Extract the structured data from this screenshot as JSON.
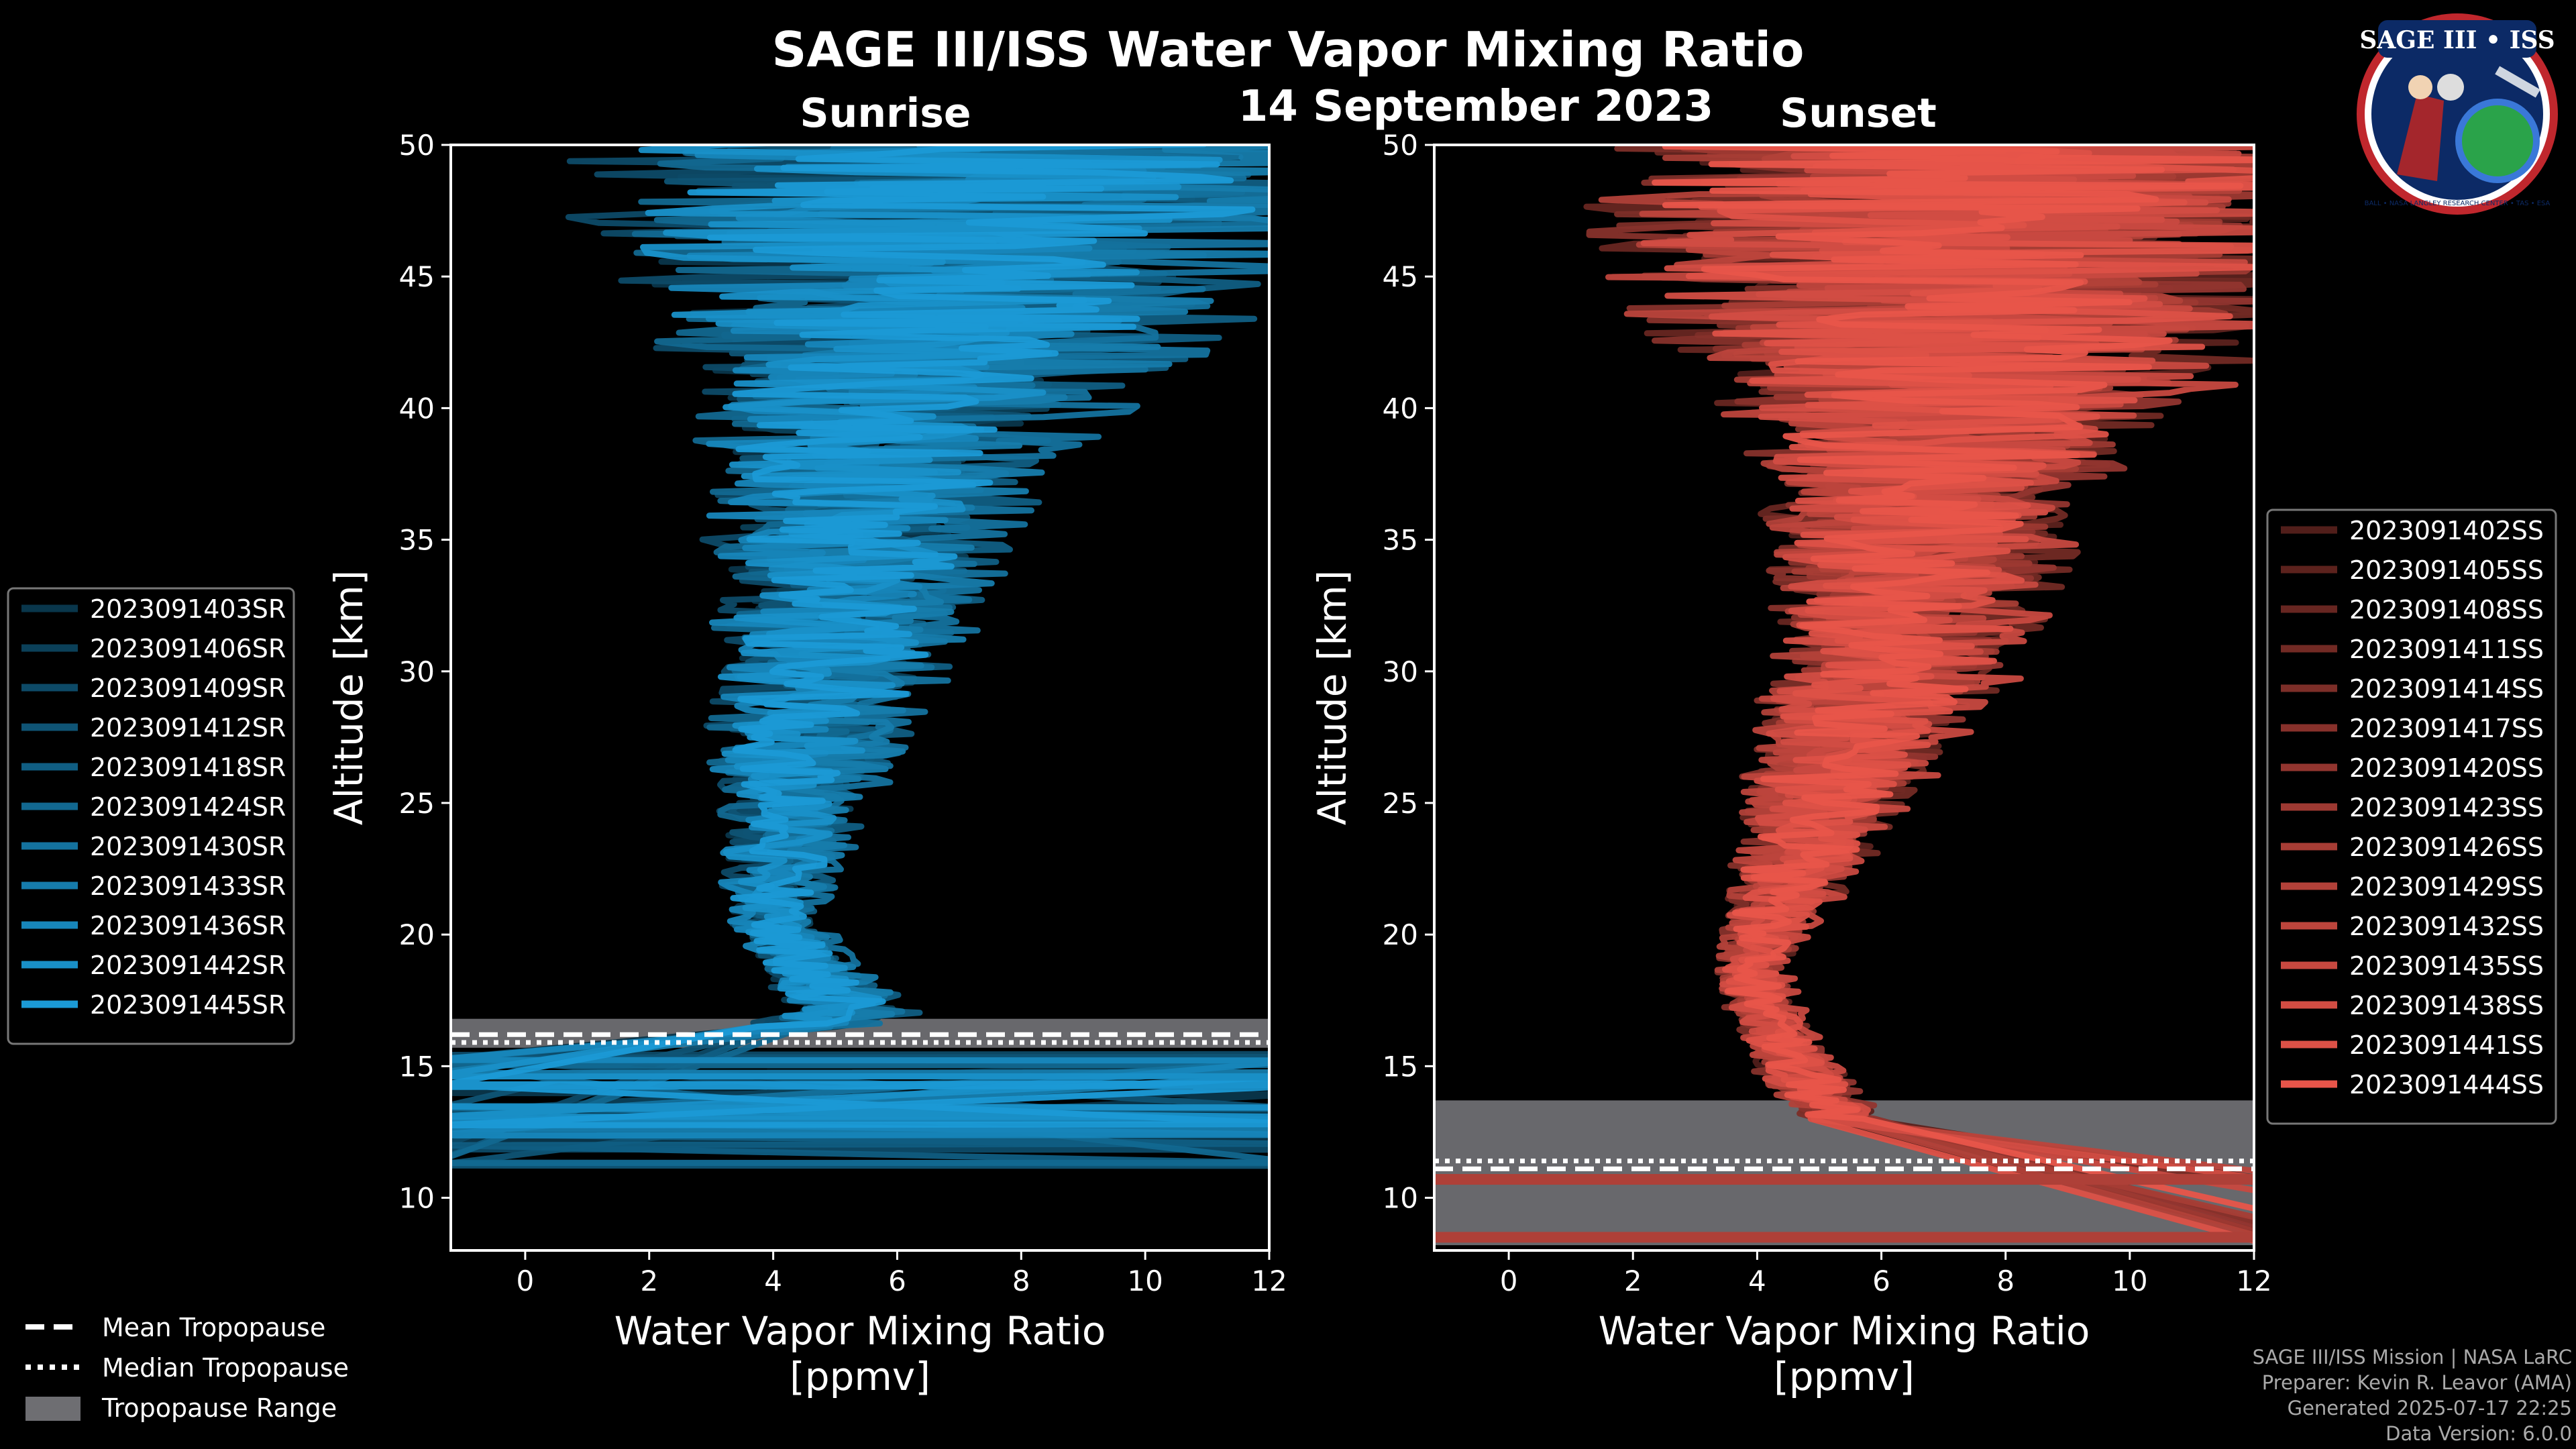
{
  "header": {
    "title": "SAGE III/ISS Water Vapor Mixing Ratio",
    "date": "14 September 2023",
    "left_label": "Sunrise",
    "right_label": "Sunset"
  },
  "logo": {
    "text": "SAGE III • ISS",
    "ring_text": "BALL • NASA LANGLEY RESEARCH CENTER • TAS • ESA"
  },
  "credits": {
    "line1": "SAGE III/ISS Mission | NASA LaRC",
    "line2": "Preparer: Kevin R. Leavor (AMA)",
    "line3": "Generated 2025-07-17 22:25",
    "line4": "Data Version: 6.0.0"
  },
  "colors": {
    "sunrise_base": "#1b9ad6",
    "sunset_base": "#e8554a",
    "tropopause_band": "#6e6e72"
  },
  "chart_data": [
    {
      "type": "line",
      "panel": "Sunrise",
      "xlabel": "Water Vapor Mixing Ratio\n[ppmv]",
      "ylabel": "Altitude [km]",
      "xlim": [
        -1.2,
        12
      ],
      "ylim": [
        8,
        50
      ],
      "xticks": [
        0,
        2,
        4,
        6,
        8,
        10,
        12
      ],
      "yticks": [
        10,
        15,
        20,
        25,
        30,
        35,
        40,
        45,
        50
      ],
      "grid": false,
      "legend_position": "left",
      "tropopause": {
        "min": 15.7,
        "max": 16.8,
        "mean": 16.2,
        "median": 15.9
      },
      "profile": {
        "altitude_km": [
          16.5,
          17,
          18,
          19,
          20,
          21,
          22,
          23,
          24,
          25,
          26,
          28,
          30,
          32,
          34,
          36,
          38,
          40,
          42,
          44,
          46,
          48,
          50
        ],
        "mean_ppmv": [
          4.6,
          5.2,
          5.0,
          4.6,
          4.2,
          4.0,
          4.1,
          4.2,
          4.3,
          4.4,
          4.5,
          4.7,
          5.0,
          5.2,
          5.4,
          5.6,
          5.8,
          6.2,
          6.6,
          7.0,
          7.3,
          7.5,
          7.6
        ],
        "spread_ppmv": [
          0.8,
          0.9,
          0.8,
          0.7,
          0.6,
          0.6,
          0.7,
          0.8,
          0.9,
          1.0,
          1.1,
          1.3,
          1.5,
          1.6,
          1.8,
          2.0,
          2.2,
          2.6,
          3.2,
          4.0,
          4.5,
          5.0,
          5.0
        ]
      },
      "series": [
        {
          "name": "2023091403SR"
        },
        {
          "name": "2023091406SR"
        },
        {
          "name": "2023091409SR"
        },
        {
          "name": "2023091412SR"
        },
        {
          "name": "2023091418SR"
        },
        {
          "name": "2023091424SR"
        },
        {
          "name": "2023091430SR"
        },
        {
          "name": "2023091433SR"
        },
        {
          "name": "2023091436SR"
        },
        {
          "name": "2023091442SR"
        },
        {
          "name": "2023091445SR"
        }
      ]
    },
    {
      "type": "line",
      "panel": "Sunset",
      "xlabel": "Water Vapor Mixing Ratio\n[ppmv]",
      "ylabel": "Altitude [km]",
      "xlim": [
        -1.2,
        12
      ],
      "ylim": [
        8,
        50
      ],
      "xticks": [
        0,
        2,
        4,
        6,
        8,
        10,
        12
      ],
      "yticks": [
        10,
        15,
        20,
        25,
        30,
        35,
        40,
        45,
        50
      ],
      "grid": false,
      "legend_position": "right",
      "tropopause": {
        "min": 8.2,
        "max": 13.7,
        "mean": 11.1,
        "median": 11.4
      },
      "profile": {
        "altitude_km": [
          13,
          14,
          15,
          16,
          17,
          18,
          19,
          20,
          22,
          24,
          26,
          28,
          30,
          32,
          34,
          36,
          38,
          40,
          42,
          44,
          46,
          48,
          50
        ],
        "mean_ppmv": [
          5.5,
          5.0,
          4.7,
          4.4,
          4.2,
          4.0,
          4.0,
          4.2,
          4.6,
          5.0,
          5.4,
          5.8,
          6.3,
          6.6,
          6.8,
          7.0,
          7.2,
          7.4,
          7.6,
          7.8,
          8.0,
          8.2,
          8.3
        ],
        "spread_ppmv": [
          0.6,
          0.6,
          0.6,
          0.5,
          0.5,
          0.5,
          0.5,
          0.6,
          0.8,
          1.0,
          1.2,
          1.4,
          1.6,
          1.8,
          2.0,
          2.2,
          2.5,
          3.0,
          3.8,
          4.5,
          5.0,
          5.2,
          5.2
        ]
      },
      "series": [
        {
          "name": "2023091402SS"
        },
        {
          "name": "2023091405SS"
        },
        {
          "name": "2023091408SS"
        },
        {
          "name": "2023091411SS"
        },
        {
          "name": "2023091414SS"
        },
        {
          "name": "2023091417SS"
        },
        {
          "name": "2023091420SS"
        },
        {
          "name": "2023091423SS"
        },
        {
          "name": "2023091426SS"
        },
        {
          "name": "2023091429SS"
        },
        {
          "name": "2023091432SS"
        },
        {
          "name": "2023091435SS"
        },
        {
          "name": "2023091438SS"
        },
        {
          "name": "2023091441SS"
        },
        {
          "name": "2023091444SS"
        }
      ]
    }
  ],
  "shared_legend": {
    "mean": "Mean Tropopause",
    "median": "Median Tropopause",
    "range": "Tropopause Range"
  }
}
